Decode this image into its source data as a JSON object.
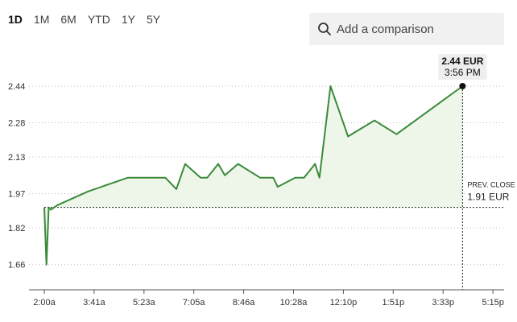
{
  "range_tabs": [
    {
      "label": "1D",
      "active": true
    },
    {
      "label": "1M",
      "active": false
    },
    {
      "label": "6M",
      "active": false
    },
    {
      "label": "YTD",
      "active": false
    },
    {
      "label": "1Y",
      "active": false
    },
    {
      "label": "5Y",
      "active": false
    }
  ],
  "comparison": {
    "placeholder": "Add a comparison",
    "icon": "search-icon"
  },
  "tooltip": {
    "value": "2.44 EUR",
    "time": "3:56 PM"
  },
  "prev_close": {
    "label": "PREV. CLOSE",
    "value": "1.91 EUR"
  },
  "colors": {
    "line": "#3a8a3a",
    "fill": "#eef6ea",
    "grid": "#bbbbbb"
  },
  "chart_data": {
    "type": "line",
    "title": "",
    "xlabel": "",
    "ylabel": "",
    "x_ticks": [
      "2:00a",
      "3:41a",
      "5:23a",
      "7:05a",
      "8:46a",
      "10:28a",
      "12:10p",
      "1:51p",
      "3:33p",
      "5:15p"
    ],
    "y_ticks": [
      "2.44",
      "2.28",
      "2.13",
      "1.97",
      "1.82",
      "1.66"
    ],
    "ylim": [
      1.55,
      2.57
    ],
    "x_range_min": [
      0,
      1019
    ],
    "prev_close": 1.91,
    "grid": true,
    "series": [
      {
        "x": [
          0,
          5,
          10,
          15,
          30,
          100,
          190,
          240,
          275,
          300,
          320,
          355,
          370,
          395,
          410,
          440,
          490,
          510,
          520,
          530,
          570,
          590,
          615,
          625,
          650,
          690,
          750,
          800,
          950
        ],
        "y": [
          1.91,
          1.66,
          1.91,
          1.9,
          1.92,
          1.98,
          2.04,
          2.04,
          2.04,
          1.99,
          2.1,
          2.04,
          2.04,
          2.1,
          2.05,
          2.1,
          2.04,
          2.04,
          2.04,
          2.0,
          2.04,
          2.04,
          2.1,
          2.04,
          2.44,
          2.22,
          2.29,
          2.23,
          2.44
        ]
      }
    ]
  }
}
